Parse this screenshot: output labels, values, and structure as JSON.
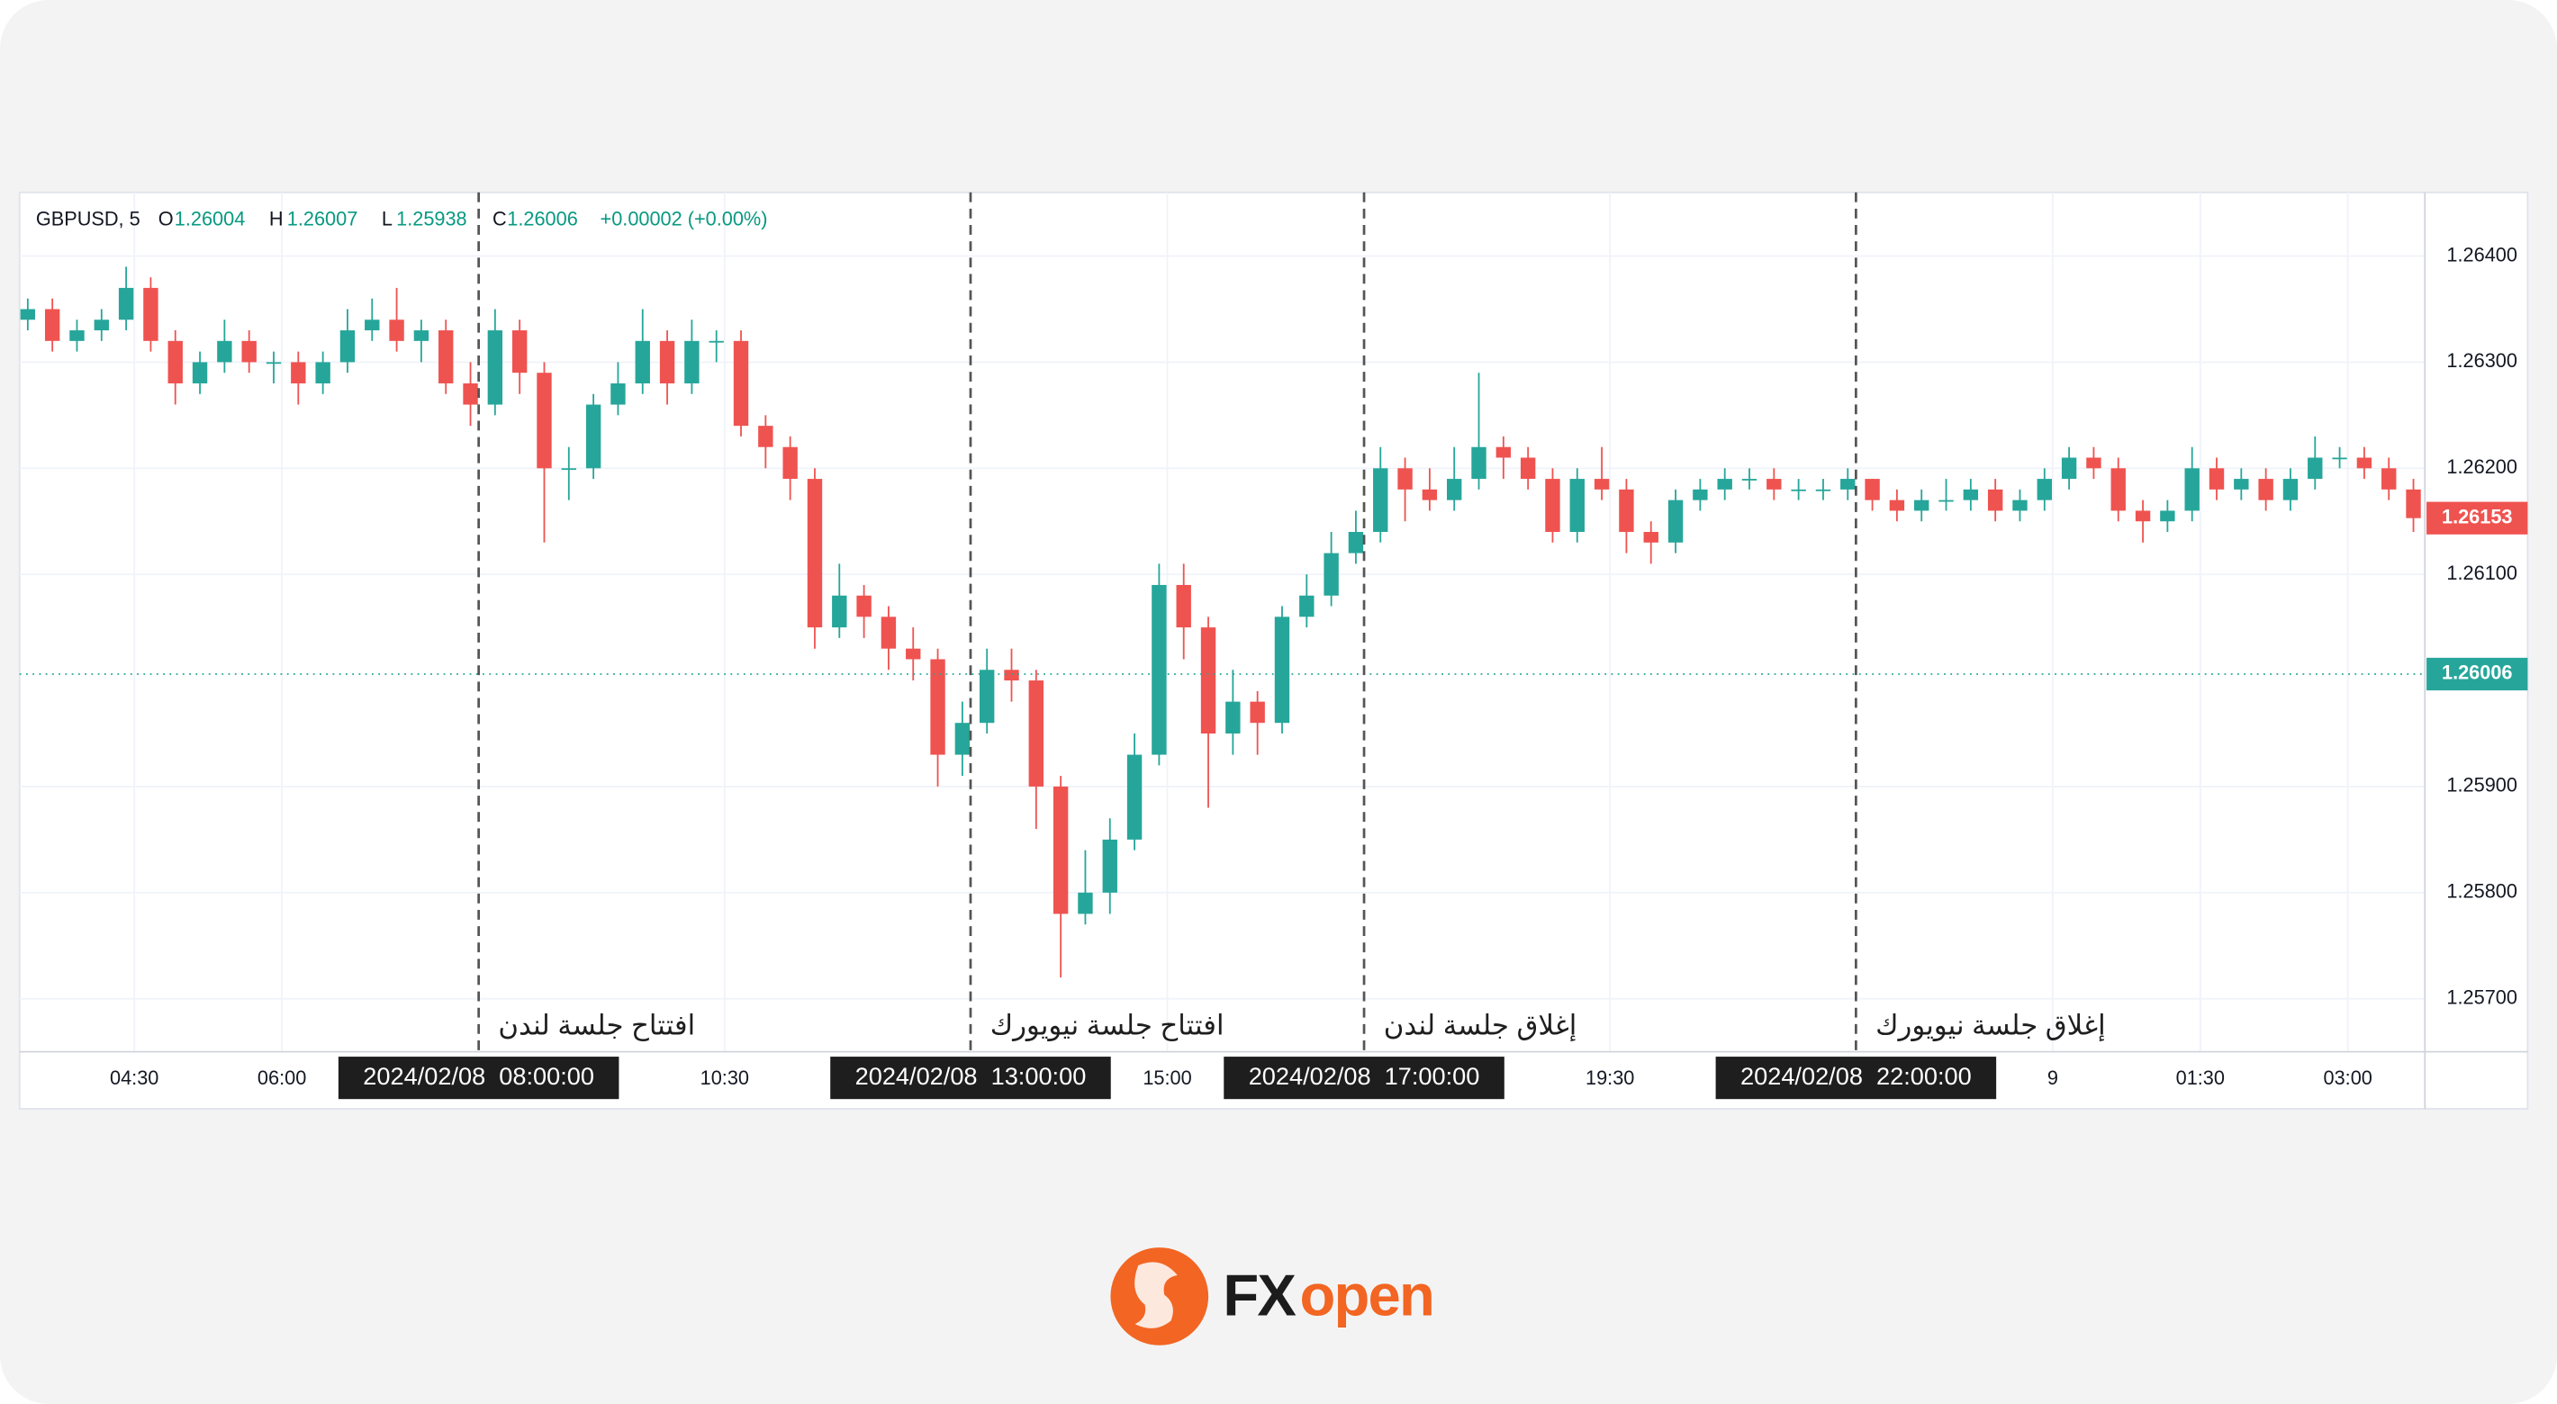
{
  "chart_data": {
    "type": "candlestick",
    "header": {
      "symbol": "GBPUSD, 5",
      "o_label": "O",
      "o_value": "1.26004",
      "h_label": "H",
      "h_value": "1.26007",
      "l_label": "L",
      "l_value": "1.25938",
      "c_label": "C",
      "c_value": "1.26006",
      "change": "+0.00002 (+0.00%)"
    },
    "up_color": "#26a69a",
    "down_color": "#ef5350",
    "candles": {
      "x": [
        205,
        220,
        235,
        250,
        265,
        280,
        295,
        310,
        325,
        340,
        355,
        370,
        385,
        400,
        415,
        430,
        445,
        460,
        475,
        490,
        505,
        520,
        535,
        550,
        565,
        580,
        595,
        610,
        625,
        640,
        655,
        670,
        685,
        700,
        715,
        730,
        745,
        760,
        775,
        790,
        805,
        820,
        835,
        850,
        865,
        880,
        895,
        910,
        925,
        940,
        955,
        970,
        985,
        1000,
        1015,
        1030,
        1045,
        1060,
        1075,
        1090,
        1105,
        1120,
        1135,
        1150,
        1165,
        1180,
        1195,
        1210,
        1225,
        1240,
        1255,
        1270,
        1285,
        1300,
        1315,
        1330,
        1345,
        1360,
        1375,
        1390,
        1405,
        1420,
        1435,
        1450,
        1465,
        1480,
        1495,
        1510,
        1525,
        1540,
        1555,
        1570,
        1585,
        1600,
        1615,
        1630,
        1645,
        1660
      ],
      "open": [
        1.2634,
        1.2635,
        1.2632,
        1.2633,
        1.2634,
        1.2637,
        1.2632,
        1.2628,
        1.263,
        1.2632,
        1.263,
        1.263,
        1.2628,
        1.263,
        1.2633,
        1.2634,
        1.2632,
        1.2633,
        1.2628,
        1.2626,
        1.2633,
        1.2629,
        1.262,
        1.262,
        1.2626,
        1.2628,
        1.2632,
        1.2628,
        1.2632,
        1.2632,
        1.2624,
        1.2622,
        1.2619,
        1.2605,
        1.2608,
        1.2606,
        1.2603,
        1.2602,
        1.2593,
        1.2596,
        1.2601,
        1.26,
        1.259,
        1.2578,
        1.258,
        1.2585,
        1.2593,
        1.2609,
        1.2605,
        1.2595,
        1.2598,
        1.2596,
        1.2606,
        1.2608,
        1.2612,
        1.2614,
        1.262,
        1.2618,
        1.2617,
        1.2619,
        1.2622,
        1.2621,
        1.2619,
        1.2614,
        1.2619,
        1.2618,
        1.2614,
        1.2613,
        1.2617,
        1.2618,
        1.2619,
        1.2619,
        1.2618,
        1.2618,
        1.2618,
        1.2619,
        1.2617,
        1.2616,
        1.2617,
        1.2617,
        1.2618,
        1.2616,
        1.2617,
        1.2619,
        1.2621,
        1.262,
        1.2616,
        1.2615,
        1.2616,
        1.262,
        1.2618,
        1.2619,
        1.2617,
        1.2619,
        1.2621,
        1.2621,
        1.262,
        1.2618
      ],
      "high": [
        1.2636,
        1.2636,
        1.2634,
        1.2635,
        1.2639,
        1.2638,
        1.2633,
        1.2631,
        1.2634,
        1.2633,
        1.2631,
        1.2631,
        1.2631,
        1.2635,
        1.2636,
        1.2637,
        1.2634,
        1.2634,
        1.263,
        1.2635,
        1.2634,
        1.263,
        1.2622,
        1.2627,
        1.263,
        1.2635,
        1.2633,
        1.2634,
        1.2633,
        1.2633,
        1.2625,
        1.2623,
        1.262,
        1.2611,
        1.2609,
        1.2607,
        1.2605,
        1.2603,
        1.2598,
        1.2603,
        1.2603,
        1.2601,
        1.2591,
        1.2584,
        1.2587,
        1.2595,
        1.2611,
        1.2611,
        1.2606,
        1.2601,
        1.2599,
        1.2607,
        1.261,
        1.2614,
        1.2616,
        1.2622,
        1.2621,
        1.262,
        1.2622,
        1.2629,
        1.2623,
        1.2622,
        1.262,
        1.262,
        1.2622,
        1.2619,
        1.2615,
        1.2618,
        1.2619,
        1.262,
        1.262,
        1.262,
        1.2619,
        1.2619,
        1.262,
        1.2619,
        1.2618,
        1.2618,
        1.2619,
        1.2619,
        1.2619,
        1.2618,
        1.262,
        1.2622,
        1.2622,
        1.2621,
        1.2617,
        1.2617,
        1.2622,
        1.2621,
        1.262,
        1.262,
        1.262,
        1.2623,
        1.2622,
        1.2622,
        1.2621,
        1.2619
      ],
      "low": [
        1.2633,
        1.2631,
        1.2631,
        1.2632,
        1.2633,
        1.2631,
        1.2626,
        1.2627,
        1.2629,
        1.2629,
        1.2628,
        1.2626,
        1.2627,
        1.2629,
        1.2632,
        1.2631,
        1.263,
        1.2627,
        1.2624,
        1.2625,
        1.2627,
        1.2613,
        1.2617,
        1.2619,
        1.2625,
        1.2627,
        1.2626,
        1.2627,
        1.263,
        1.2623,
        1.262,
        1.2617,
        1.2603,
        1.2604,
        1.2604,
        1.2601,
        1.26,
        1.259,
        1.2591,
        1.2595,
        1.2598,
        1.2586,
        1.2572,
        1.2577,
        1.2578,
        1.2584,
        1.2592,
        1.2602,
        1.2588,
        1.2593,
        1.2593,
        1.2595,
        1.2605,
        1.2607,
        1.2611,
        1.2613,
        1.2615,
        1.2616,
        1.2616,
        1.2618,
        1.2619,
        1.2618,
        1.2613,
        1.2613,
        1.2617,
        1.2612,
        1.2611,
        1.2612,
        1.2616,
        1.2617,
        1.2618,
        1.2617,
        1.2617,
        1.2617,
        1.2617,
        1.2616,
        1.2615,
        1.2615,
        1.2616,
        1.2616,
        1.2615,
        1.2615,
        1.2616,
        1.2618,
        1.2619,
        1.2615,
        1.2613,
        1.2614,
        1.2615,
        1.2617,
        1.2617,
        1.2616,
        1.2616,
        1.2618,
        1.262,
        1.2619,
        1.2617,
        1.2614
      ],
      "close": [
        1.2635,
        1.2632,
        1.2633,
        1.2634,
        1.2637,
        1.2632,
        1.2628,
        1.263,
        1.2632,
        1.263,
        1.263,
        1.2628,
        1.263,
        1.2633,
        1.2634,
        1.2632,
        1.2633,
        1.2628,
        1.2626,
        1.2633,
        1.2629,
        1.262,
        1.262,
        1.2626,
        1.2628,
        1.2632,
        1.2628,
        1.2632,
        1.2632,
        1.2624,
        1.2622,
        1.2619,
        1.2605,
        1.2608,
        1.2606,
        1.2603,
        1.2602,
        1.2593,
        1.2596,
        1.2601,
        1.26,
        1.259,
        1.2578,
        1.258,
        1.2585,
        1.2593,
        1.2609,
        1.2605,
        1.2595,
        1.2598,
        1.2596,
        1.2606,
        1.2608,
        1.2612,
        1.2614,
        1.262,
        1.2618,
        1.2617,
        1.2619,
        1.2622,
        1.2621,
        1.2619,
        1.2614,
        1.2619,
        1.2618,
        1.2614,
        1.2613,
        1.2617,
        1.2618,
        1.2619,
        1.2619,
        1.2618,
        1.2618,
        1.2618,
        1.2619,
        1.2617,
        1.2616,
        1.2617,
        1.2617,
        1.2618,
        1.2616,
        1.2617,
        1.2619,
        1.2621,
        1.262,
        1.2616,
        1.2615,
        1.2616,
        1.262,
        1.2618,
        1.2619,
        1.2617,
        1.2619,
        1.2621,
        1.2621,
        1.262,
        1.2618,
        1.26153
      ]
    },
    "xlim": [
      200,
      1667
    ],
    "xticks": [
      {
        "value": 270,
        "label": "04:30"
      },
      {
        "value": 360,
        "label": "06:00"
      },
      {
        "value": 630,
        "label": "10:30"
      },
      {
        "value": 900,
        "label": "15:00"
      },
      {
        "value": 1170,
        "label": "19:30"
      },
      {
        "value": 1440,
        "label": "9"
      },
      {
        "value": 1530,
        "label": "01:30"
      },
      {
        "value": 1620,
        "label": "03:00"
      }
    ],
    "ylim": [
      1.2565,
      1.2646
    ],
    "yticks": [
      {
        "value": 1.264,
        "label": "1.26400"
      },
      {
        "value": 1.263,
        "label": "1.26300"
      },
      {
        "value": 1.262,
        "label": "1.26200"
      },
      {
        "value": 1.261,
        "label": "1.26100"
      },
      {
        "value": 1.259,
        "label": "1.25900"
      },
      {
        "value": 1.258,
        "label": "1.25800"
      },
      {
        "value": 1.257,
        "label": "1.25700"
      }
    ],
    "grid": true,
    "last_price": 1.26153,
    "cursor_price": 1.26006,
    "sessions": [
      {
        "x": 480,
        "date_label": "2024/02/08  08:00:00",
        "label": "افتتاح جلسة لندن"
      },
      {
        "x": 780,
        "date_label": "2024/02/08  13:00:00",
        "label": "افتتاح جلسة نيويورك"
      },
      {
        "x": 1020,
        "date_label": "2024/02/08  17:00:00",
        "label": "إغلاق جلسة لندن"
      },
      {
        "x": 1320,
        "date_label": "2024/02/08  22:00:00",
        "label": "إغلاق جلسة نيويورك"
      }
    ],
    "brand": {
      "fx": "FX",
      "open": "open"
    }
  }
}
